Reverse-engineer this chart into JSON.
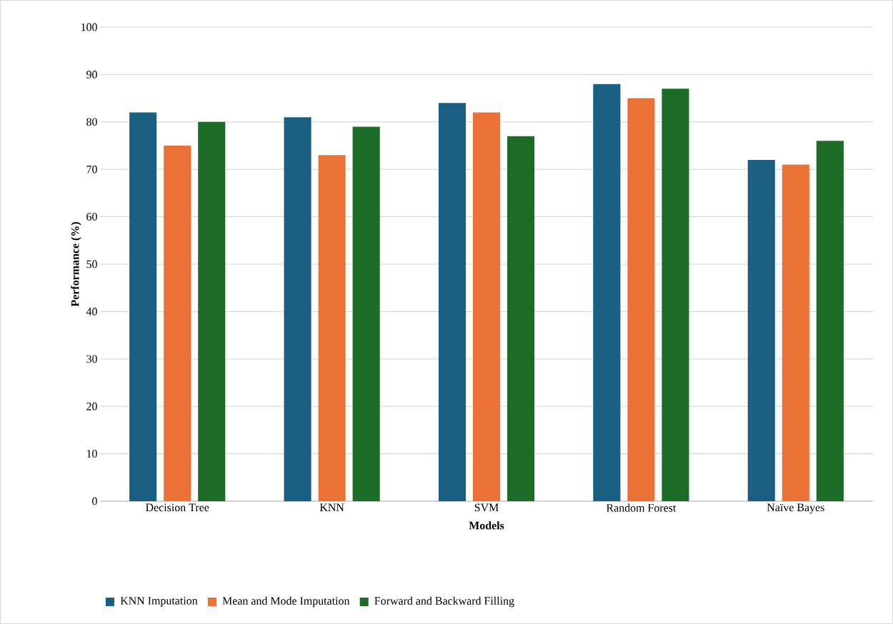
{
  "chart_data": {
    "type": "bar",
    "xlabel": "Models",
    "ylabel": "Performance (%)",
    "categories": [
      "Decision Tree",
      "KNN",
      "SVM",
      "Random Forest",
      "Naïve Bayes"
    ],
    "series": [
      {
        "name": "KNN Imputation",
        "color": "#1a5e82",
        "values": [
          82,
          81,
          84,
          88,
          72
        ]
      },
      {
        "name": "Mean and Mode Imputation",
        "color": "#eb7236",
        "values": [
          75,
          73,
          82,
          85,
          71
        ]
      },
      {
        "name": "Forward and Backward Filling",
        "color": "#1c6b27",
        "values": [
          80,
          79,
          77,
          87,
          76
        ]
      }
    ],
    "ylim": [
      0,
      100
    ],
    "yticks": [
      0,
      10,
      20,
      30,
      40,
      50,
      60,
      70,
      80,
      90,
      100
    ],
    "grid": "y",
    "legend": "bottom"
  }
}
